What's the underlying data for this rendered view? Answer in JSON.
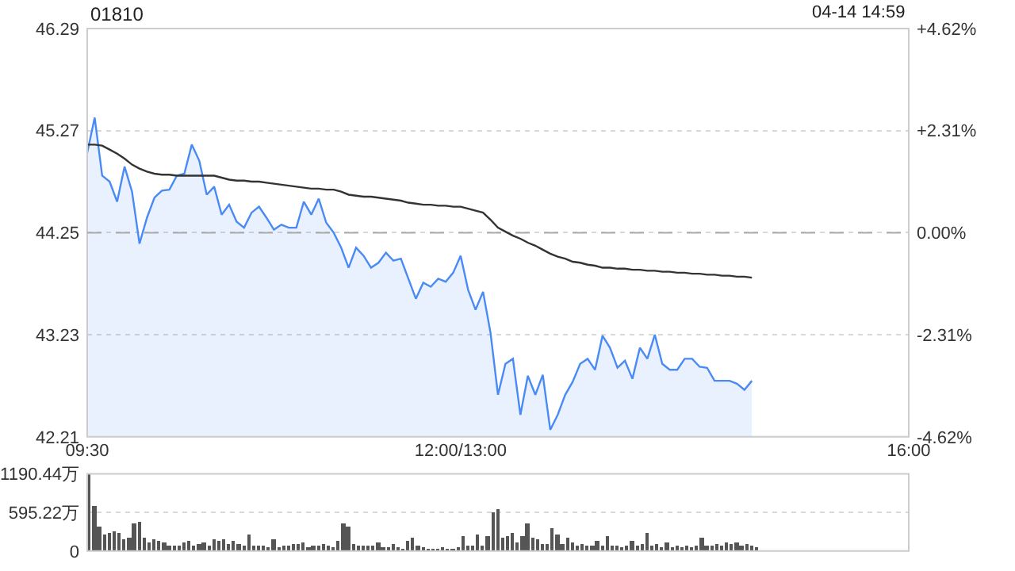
{
  "chart_data": [
    {
      "type": "area",
      "title": "01810",
      "annotations": [
        "04-14 14:59"
      ],
      "marker": "none",
      "line_style": "solid",
      "grid": "y",
      "categories": [
        "09:30",
        null,
        null,
        null,
        null,
        null,
        null,
        null,
        null,
        null,
        null,
        null,
        null,
        null,
        null,
        null,
        null,
        null,
        null,
        null,
        null,
        null,
        null,
        null,
        null,
        null,
        null,
        null,
        null,
        null,
        null,
        null,
        null,
        null,
        null,
        null,
        null,
        null,
        null,
        null,
        null,
        null,
        null,
        null,
        null,
        null,
        null,
        null,
        null,
        null,
        "12:00/13:00",
        null,
        null,
        null,
        null,
        null,
        null,
        null,
        null,
        null,
        null,
        null,
        null,
        null,
        null,
        null,
        null,
        null,
        null,
        null,
        null,
        null,
        null,
        null,
        null,
        null,
        null,
        null,
        null,
        null,
        null,
        null,
        null,
        null,
        null,
        null,
        null,
        null,
        null,
        null,
        null,
        null,
        null,
        null,
        null,
        null,
        null,
        null,
        null,
        null,
        null,
        null,
        null,
        null,
        null,
        null,
        null,
        null,
        null,
        null,
        "16:00"
      ],
      "ylim": [
        42.21,
        46.29
      ],
      "yticks": [
        42.21,
        43.23,
        44.25,
        45.27,
        46.29
      ],
      "y2lim": [
        -4.62,
        4.62
      ],
      "y2ticks": [
        {
          "value": -4.62,
          "label": "-4.62%"
        },
        {
          "value": -2.31,
          "label": "-2.31%"
        },
        {
          "value": 0,
          "label": "0.00%"
        },
        {
          "value": 2.31,
          "label": "+2.31%"
        },
        {
          "value": 4.62,
          "label": "+4.62%"
        }
      ],
      "ref_lines": [
        {
          "axis": "y",
          "value": 44.25,
          "color": "#aaaaaa",
          "line_style": "dashed"
        }
      ],
      "series": [
        {
          "type": "area",
          "color": "#4a8af4",
          "values": [
            45.05,
            45.4,
            44.82,
            44.76,
            44.56,
            44.91,
            44.66,
            44.14,
            44.4,
            44.6,
            44.67,
            44.68,
            44.82,
            44.84,
            45.13,
            44.97,
            44.63,
            44.71,
            44.43,
            44.53,
            44.36,
            44.3,
            44.45,
            44.51,
            44.4,
            44.28,
            44.33,
            44.3,
            44.3,
            44.56,
            44.43,
            44.59,
            44.35,
            44.25,
            44.1,
            43.9,
            44.1,
            44.02,
            43.9,
            43.95,
            44.05,
            43.97,
            43.99,
            43.79,
            43.59,
            43.75,
            43.71,
            43.79,
            43.76,
            43.85,
            44.02,
            43.68,
            43.48,
            43.66,
            43.25,
            42.63,
            42.94,
            42.99,
            42.43,
            42.82,
            42.63,
            42.83,
            42.28,
            42.43,
            42.63,
            42.76,
            42.94,
            42.99,
            42.88,
            43.22,
            43.1,
            42.9,
            42.97,
            42.79,
            43.1,
            42.99,
            43.23,
            42.94,
            42.88,
            42.88,
            42.99,
            42.99,
            42.91,
            42.9,
            42.77,
            42.77,
            42.77,
            42.74,
            42.68,
            42.77,
            null,
            null,
            null,
            null,
            null,
            null,
            null,
            null,
            null,
            null,
            null,
            null,
            null,
            null,
            null,
            null,
            null,
            null,
            null,
            null,
            null
          ]
        },
        {
          "type": "line",
          "color": "#333333",
          "values": [
            45.13,
            45.13,
            45.12,
            45.08,
            45.04,
            44.99,
            44.93,
            44.89,
            44.86,
            44.84,
            44.83,
            44.83,
            44.82,
            44.82,
            44.82,
            44.82,
            44.82,
            44.82,
            44.8,
            44.78,
            44.77,
            44.77,
            44.76,
            44.76,
            44.75,
            44.74,
            44.73,
            44.72,
            44.71,
            44.7,
            44.69,
            44.69,
            44.68,
            44.68,
            44.66,
            44.63,
            44.62,
            44.61,
            44.61,
            44.6,
            44.59,
            44.58,
            44.57,
            44.55,
            44.54,
            44.53,
            44.53,
            44.52,
            44.52,
            44.51,
            44.51,
            44.49,
            44.47,
            44.45,
            44.38,
            44.3,
            44.26,
            44.22,
            44.19,
            44.15,
            44.12,
            44.08,
            44.04,
            44.01,
            43.99,
            43.96,
            43.95,
            43.93,
            43.92,
            43.9,
            43.9,
            43.89,
            43.89,
            43.88,
            43.88,
            43.87,
            43.87,
            43.86,
            43.86,
            43.85,
            43.85,
            43.84,
            43.84,
            43.83,
            43.83,
            43.82,
            43.82,
            43.81,
            43.81,
            43.8,
            null,
            null,
            null,
            null,
            null,
            null,
            null,
            null,
            null,
            null,
            null,
            null,
            null,
            null,
            null,
            null,
            null,
            null,
            null,
            null,
            null
          ]
        }
      ]
    },
    {
      "type": "bar",
      "grid": "y",
      "tick_labels": "y",
      "categories": [
        null,
        null,
        null,
        null,
        null,
        null,
        null,
        null,
        null,
        null,
        null,
        null,
        null,
        null,
        null,
        null,
        null,
        null,
        null,
        null,
        null,
        null,
        null,
        null,
        null,
        null,
        null,
        null,
        null,
        null,
        null,
        null,
        null,
        null,
        null,
        null,
        null,
        null,
        null,
        null,
        null,
        null,
        null,
        null,
        null,
        null,
        null,
        null,
        null,
        null,
        null,
        null,
        null,
        null,
        null,
        null,
        null,
        null,
        null,
        null,
        null,
        null,
        null,
        null,
        null,
        null,
        null,
        null,
        null,
        null,
        null,
        null,
        null,
        null,
        null,
        null,
        null,
        null,
        null,
        null,
        null,
        null,
        null,
        null,
        null,
        null,
        null,
        null,
        null,
        null,
        null,
        null,
        null,
        null,
        null,
        null,
        null,
        null,
        null,
        null,
        null,
        null,
        null,
        null,
        null,
        null,
        null,
        null,
        null,
        null,
        null,
        null,
        null,
        null,
        null,
        null,
        null,
        null,
        null,
        null,
        null,
        null,
        null,
        null,
        null,
        null,
        null,
        null,
        null,
        null,
        null,
        null,
        null,
        null,
        null,
        null,
        null,
        null,
        null,
        null,
        null,
        null,
        null,
        null,
        null,
        null,
        null,
        null,
        null,
        null,
        null,
        null,
        null,
        null,
        null,
        null,
        null,
        null,
        null,
        null,
        null,
        null,
        null,
        null,
        null
      ],
      "ylim": [
        0,
        1190.44
      ],
      "yticks": [
        0,
        {
          "value": 595.22,
          "label": "595.22万"
        },
        {
          "value": 1190.44,
          "label": "1190.44万"
        }
      ],
      "series": [
        {
          "color": "#555555",
          "values": [
            1190,
            710,
            370,
            260,
            290,
            320,
            290,
            180,
            200,
            440,
            450,
            210,
            140,
            180,
            160,
            140,
            100,
            80,
            100,
            140,
            160,
            80,
            120,
            140,
            90,
            180,
            160,
            180,
            120,
            150,
            120,
            80,
            260,
            80,
            100,
            80,
            60,
            180,
            60,
            80,
            100,
            120,
            120,
            140,
            60,
            100,
            100,
            120,
            100,
            60,
            160,
            440,
            370,
            120,
            80,
            100,
            80,
            100,
            140,
            60,
            60,
            120,
            60,
            40,
            160,
            210,
            100,
            60,
            40,
            40,
            40,
            60,
            40,
            40,
            60,
            240,
            80,
            100,
            260,
            100,
            240,
            610,
            640,
            200,
            240,
            280,
            140,
            240,
            420,
            200,
            180,
            120,
            120,
            360,
            260,
            120,
            200,
            140,
            100,
            120,
            100,
            80,
            160,
            100,
            240,
            80,
            80,
            60,
            80,
            160,
            80,
            120,
            280,
            100,
            120,
            60,
            140,
            60,
            80,
            60,
            80,
            60,
            100,
            200,
            80,
            100,
            120,
            80,
            140,
            120,
            140,
            80,
            120,
            80,
            60,
            null,
            null,
            null,
            null,
            null,
            null,
            null,
            null,
            null,
            null,
            null,
            null,
            null,
            null,
            null,
            null,
            null,
            null,
            null,
            null,
            null,
            null,
            null,
            null,
            null,
            null,
            null,
            null,
            null,
            null
          ]
        }
      ]
    }
  ]
}
